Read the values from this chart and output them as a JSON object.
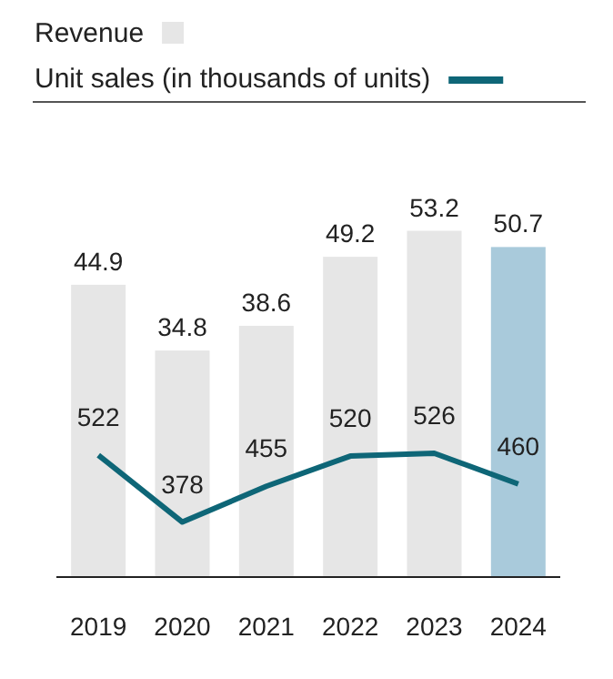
{
  "chart_data": {
    "type": "bar",
    "categories": [
      "2019",
      "2020",
      "2021",
      "2022",
      "2023",
      "2024"
    ],
    "series": [
      {
        "name": "Revenue",
        "colors": [
          "#e6e6e6",
          "#e6e6e6",
          "#e6e6e6",
          "#e6e6e6",
          "#e6e6e6",
          "#a9cadb"
        ],
        "values": [
          44.9,
          34.8,
          38.6,
          49.2,
          53.2,
          50.7
        ]
      },
      {
        "name": "Unit sales (in thousands of units)",
        "type": "line",
        "axis": "y2",
        "color": "#0e6677",
        "values": [
          522,
          378,
          455,
          520,
          526,
          460
        ]
      }
    ],
    "data_labels": true,
    "legend": "top left",
    "tick_labels": "x"
  }
}
